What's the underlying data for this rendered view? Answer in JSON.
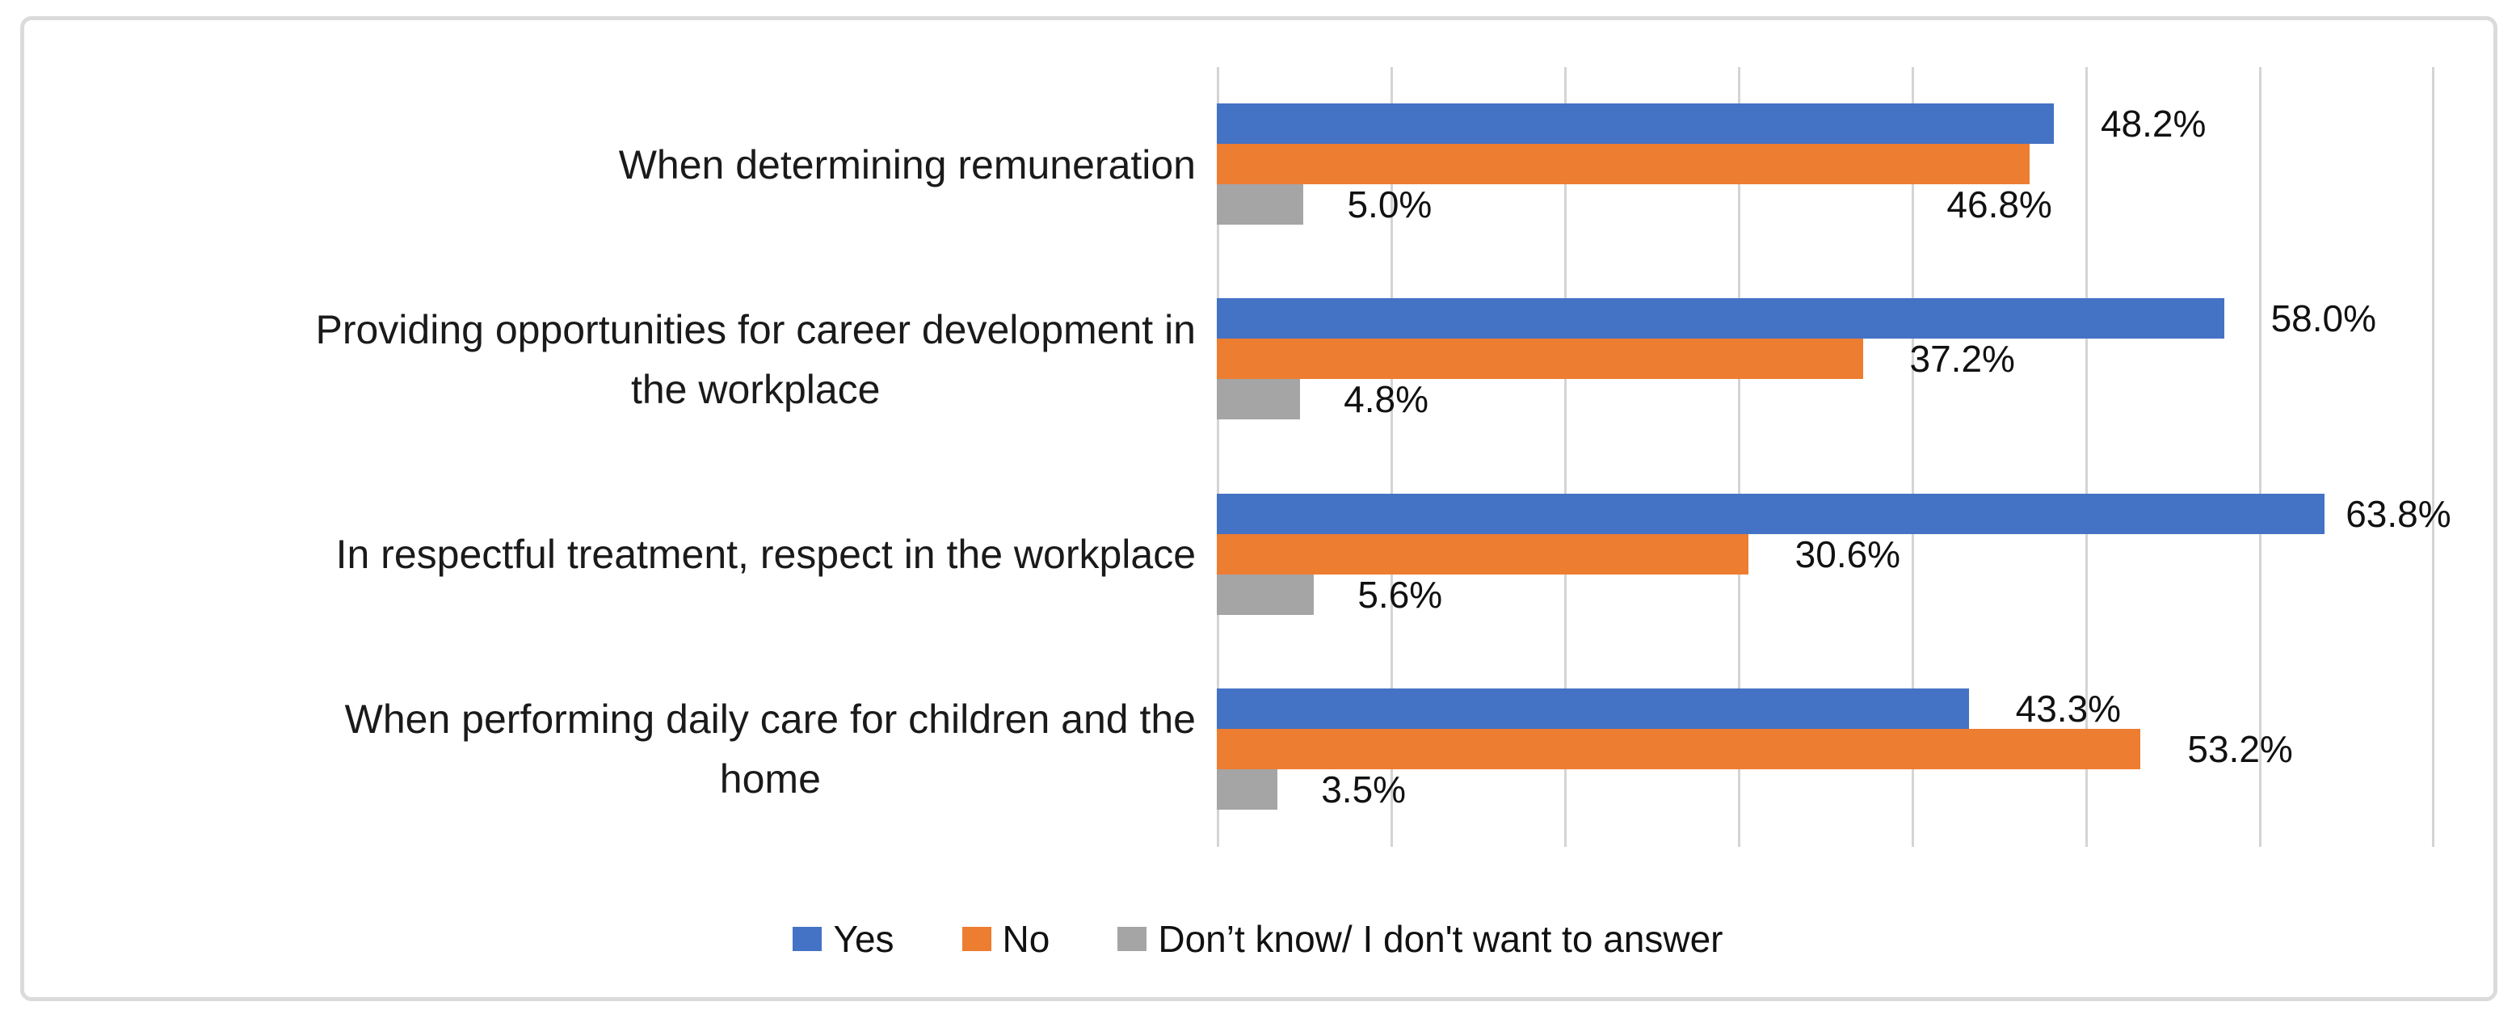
{
  "chart_data": {
    "type": "bar",
    "orientation": "horizontal",
    "title": "",
    "xlabel": "",
    "ylabel": "",
    "categories": [
      "When determining remuneration",
      "Providing opportunities for career development in\nthe workplace",
      "In respectful treatment, respect in the workplace",
      "When performing daily care for children and the\nhome"
    ],
    "series": [
      {
        "name": "Yes",
        "color": "#4472C4",
        "values": [
          48.2,
          58.0,
          63.8,
          43.3
        ]
      },
      {
        "name": "No",
        "color": "#ED7D31",
        "values": [
          46.8,
          37.2,
          30.6,
          53.2
        ]
      },
      {
        "name": "Don’t know/ I don't want to answer",
        "color": "#A5A5A5",
        "values": [
          5.0,
          4.8,
          5.6,
          3.5
        ]
      }
    ],
    "data_labels": [
      [
        "48.2%",
        "46.8%",
        "5.0%"
      ],
      [
        "58.0%",
        "37.2%",
        "4.8%"
      ],
      [
        "63.8%",
        "30.6%",
        "5.6%"
      ],
      [
        "43.3%",
        "53.2%",
        "3.5%"
      ]
    ],
    "xlim": [
      0,
      73.7
    ],
    "gridline_interval_pct": 10,
    "gridline_max_pct": 70,
    "grid": "on",
    "legend_position": "bottom",
    "gridline_color": "#D4D4D4",
    "frame_border_color": "#DBDBDB",
    "label_text_color": "#111111"
  }
}
